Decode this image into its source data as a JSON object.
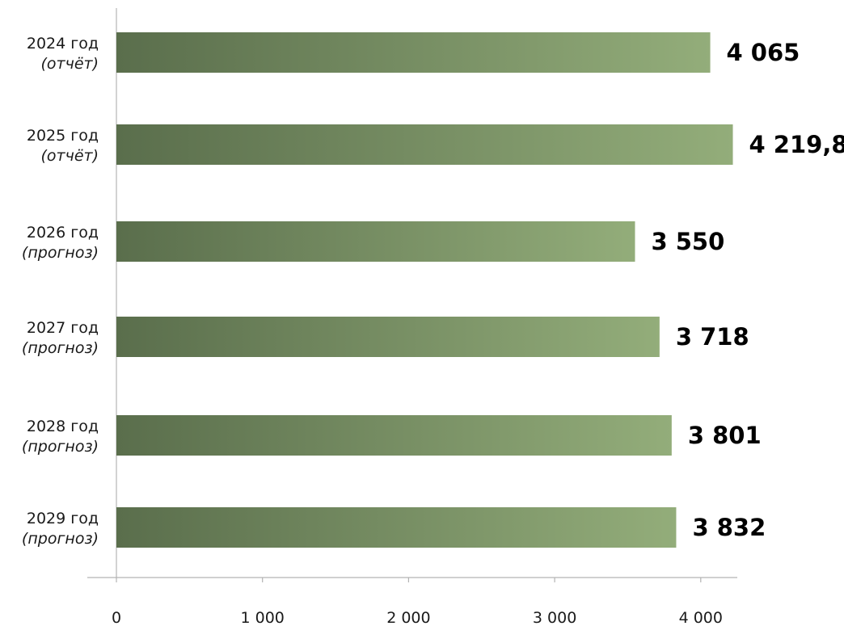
{
  "chart_data": {
    "type": "bar",
    "orientation": "horizontal",
    "categories": [
      {
        "year": "2024 год",
        "note": "(отчёт)"
      },
      {
        "year": "2025 год",
        "note": "(отчёт)"
      },
      {
        "year": "2026 год",
        "note": "(прогноз)"
      },
      {
        "year": "2027 год",
        "note": "(прогноз)"
      },
      {
        "year": "2028 год",
        "note": "(прогноз)"
      },
      {
        "year": "2029 год",
        "note": "(прогноз)"
      }
    ],
    "values": [
      4065,
      4219.8,
      3550,
      3718,
      3801,
      3832
    ],
    "value_labels": [
      "4 065",
      "4 219,8",
      "3 550",
      "3 718",
      "3 801",
      "3 832"
    ],
    "xlim": [
      0,
      4250
    ],
    "x_ticks": [
      0,
      1000,
      2000,
      3000,
      4000
    ],
    "x_tick_labels": [
      "0",
      "1 000",
      "2 000",
      "3 000",
      "4 000"
    ],
    "grid": false,
    "colors": {
      "bar_start": "#5a6e4c",
      "bar_end": "#93ad7a",
      "axis": "#b3b3b3"
    }
  }
}
